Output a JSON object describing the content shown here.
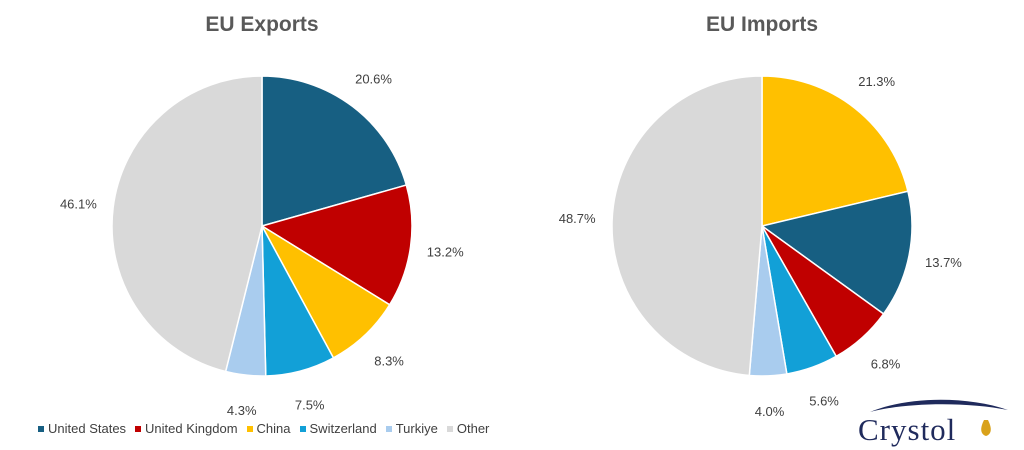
{
  "chart_data": [
    {
      "type": "pie",
      "title": "EU Exports",
      "slices": [
        {
          "label": "United States",
          "value": 20.6,
          "display": "20.6%",
          "color": "#175F82"
        },
        {
          "label": "United Kingdom",
          "value": 13.2,
          "display": "13.2%",
          "color": "#C00000"
        },
        {
          "label": "China",
          "value": 8.3,
          "display": "8.3%",
          "color": "#FFC000"
        },
        {
          "label": "Switzerland",
          "value": 7.5,
          "display": "7.5%",
          "color": "#12A0D7"
        },
        {
          "label": "Turkiye",
          "value": 4.3,
          "display": "4.3%",
          "color": "#A9CCEE"
        },
        {
          "label": "Other",
          "value": 46.1,
          "display": "46.1%",
          "color": "#D9D9D9"
        }
      ]
    },
    {
      "type": "pie",
      "title": "EU Imports",
      "slices": [
        {
          "label": "China",
          "value": 21.3,
          "display": "21.3%",
          "color": "#FFC000"
        },
        {
          "label": "United States",
          "value": 13.7,
          "display": "13.7%",
          "color": "#175F82"
        },
        {
          "label": "United Kingdom",
          "value": 6.8,
          "display": "6.8%",
          "color": "#C00000"
        },
        {
          "label": "Switzerland",
          "value": 5.6,
          "display": "5.6%",
          "color": "#12A0D7"
        },
        {
          "label": "Turkiye",
          "value": 4.0,
          "display": "4.0%",
          "color": "#A9CCEE"
        },
        {
          "label": "Other",
          "value": 48.7,
          "display": "48.7%",
          "color": "#D9D9D9"
        }
      ]
    }
  ],
  "legend": [
    {
      "label": "United States",
      "color": "#175F82"
    },
    {
      "label": "United Kingdom",
      "color": "#C00000"
    },
    {
      "label": "China",
      "color": "#FFC000"
    },
    {
      "label": "Switzerland",
      "color": "#12A0D7"
    },
    {
      "label": "Turkiye",
      "color": "#A9CCEE"
    },
    {
      "label": "Other",
      "color": "#D9D9D9"
    }
  ],
  "logo": {
    "text": "Crystol"
  }
}
